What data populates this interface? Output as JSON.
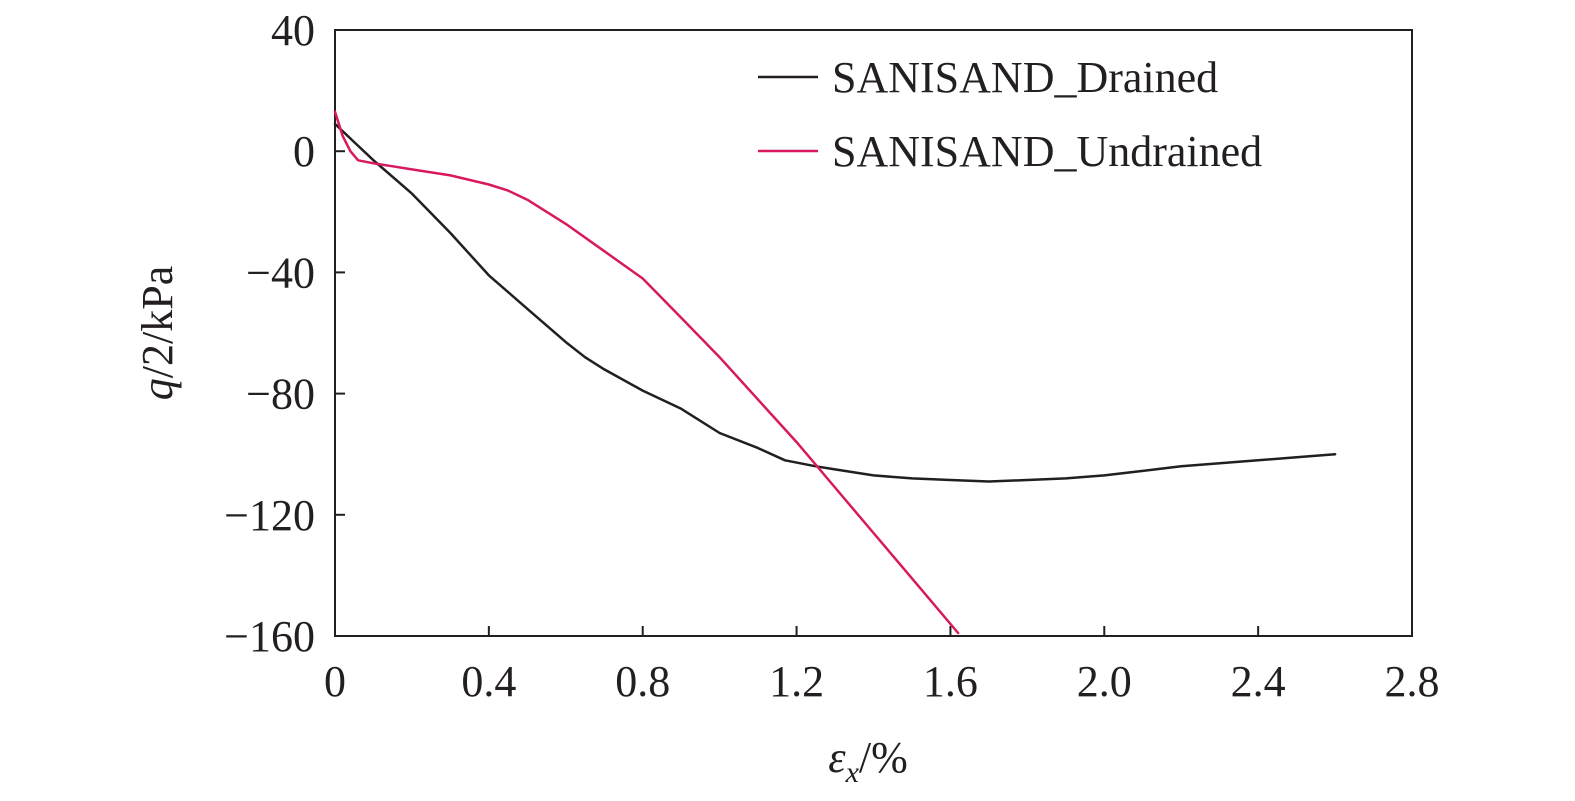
{
  "chart_data": {
    "type": "line",
    "title": "",
    "xlabel": {
      "symbol": "ε",
      "subscript": "x",
      "unit": "/%"
    },
    "ylabel": {
      "symbol": "q",
      "rest": "/2/kPa"
    },
    "xlim": [
      0,
      2.8
    ],
    "ylim": [
      -160,
      40
    ],
    "xticks": [
      "0",
      "0.4",
      "0.8",
      "1.2",
      "1.6",
      "2.0",
      "2.4",
      "2.8"
    ],
    "xtick_values": [
      0,
      0.4,
      0.8,
      1.2,
      1.6,
      2.0,
      2.4,
      2.8
    ],
    "yticks": [
      "40",
      "0",
      "−40",
      "−80",
      "−120",
      "−160"
    ],
    "ytick_values": [
      40,
      0,
      -40,
      -80,
      -120,
      -160
    ],
    "grid": false,
    "legend_position": "top-right",
    "series": [
      {
        "name": "SANISAND_Drained",
        "color": "#231f20",
        "x": [
          0,
          0.05,
          0.1,
          0.2,
          0.3,
          0.4,
          0.5,
          0.6,
          0.65,
          0.7,
          0.8,
          0.9,
          1.0,
          1.1,
          1.17,
          1.25,
          1.3,
          1.4,
          1.5,
          1.6,
          1.7,
          1.8,
          1.9,
          2.0,
          2.1,
          2.2,
          2.3,
          2.4,
          2.5,
          2.6
        ],
        "y": [
          9,
          3,
          -3,
          -14,
          -27,
          -41,
          -52,
          -63,
          -68,
          -72,
          -79,
          -85,
          -93,
          -98,
          -102,
          -104,
          -105,
          -107,
          -108,
          -108.5,
          -109,
          -108.5,
          -108,
          -107,
          -105.5,
          -104,
          -103,
          -102,
          -101,
          -100
        ]
      },
      {
        "name": "SANISAND_Undrained",
        "color": "#d8195f",
        "x": [
          0,
          0.02,
          0.04,
          0.06,
          0.1,
          0.15,
          0.2,
          0.3,
          0.4,
          0.45,
          0.5,
          0.55,
          0.6,
          0.7,
          0.8,
          0.9,
          1.0,
          1.1,
          1.2,
          1.3,
          1.4,
          1.5,
          1.62
        ],
        "y": [
          13,
          5,
          0,
          -3,
          -4,
          -5,
          -6,
          -8,
          -11,
          -13,
          -16,
          -20,
          -24,
          -33,
          -42,
          -55,
          -68,
          -82,
          -96,
          -111,
          -126,
          -141,
          -159
        ]
      }
    ]
  }
}
